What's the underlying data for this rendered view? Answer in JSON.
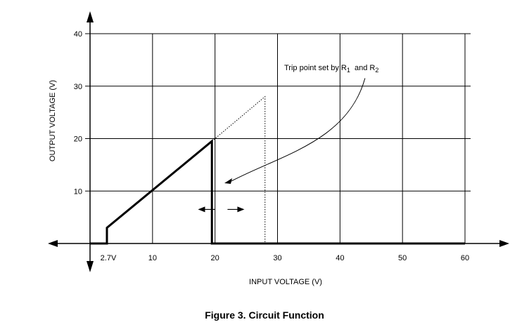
{
  "caption": "Figure 3. Circuit Function",
  "chart_data": {
    "type": "line",
    "title": "",
    "xlabel": "INPUT VOLTAGE (V)",
    "ylabel": "OUTPUT VOLTAGE (V)",
    "xlim": [
      -2,
      60
    ],
    "ylim": [
      0,
      40
    ],
    "grid": true,
    "x_ticks": [
      10,
      20,
      30,
      40,
      50,
      60
    ],
    "x_tick_labels": [
      "10",
      "20",
      "30",
      "40",
      "50",
      "60"
    ],
    "x_extra_tick": {
      "value": 2.7,
      "label": "2.7V"
    },
    "y_ticks": [
      10,
      20,
      30,
      40
    ],
    "y_tick_labels": [
      "10",
      "20",
      "30",
      "40"
    ],
    "series": [
      {
        "style": "solid",
        "x": [
          0,
          2.7,
          2.7,
          19.5,
          19.5,
          60
        ],
        "y": [
          0,
          0,
          3,
          19.5,
          0,
          0
        ]
      },
      {
        "style": "dotted",
        "x": [
          19.5,
          28,
          28
        ],
        "y": [
          19.5,
          28,
          0
        ]
      }
    ],
    "annotation": {
      "text_main": "Trip point set by R",
      "sub1": "1",
      "text_and": " and R",
      "sub2": "2",
      "pointer_from": [
        44,
        31.5
      ],
      "pointer_to": [
        21.5,
        11.5
      ]
    },
    "adjust_arrows": {
      "left_at": 17.5,
      "right_at": 22,
      "y": 6.5
    }
  }
}
